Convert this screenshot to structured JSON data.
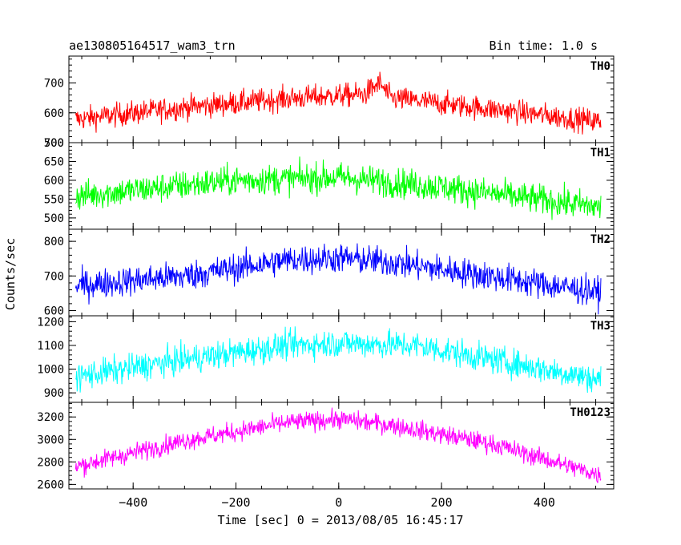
{
  "header": {
    "title": "ae130805164517_wam3_trn",
    "bin_time": "Bin time: 1.0 s"
  },
  "axes": {
    "ylabel": "Counts/sec",
    "xlabel": "Time [sec] 0 = 2013/08/05 16:45:17"
  },
  "chart_data": {
    "type": "line",
    "title": "ae130805164517_wam3_trn",
    "xlabel": "Time [sec] 0 = 2013/08/05 16:45:17",
    "ylabel": "Counts/sec",
    "xlim": [
      -525,
      535
    ],
    "x_ticks": [
      -400,
      -200,
      0,
      200,
      400
    ],
    "x_tick_labels": [
      "−400",
      "−200",
      "0",
      "200",
      "400"
    ],
    "x_range": [
      -512,
      510
    ],
    "bin_time": 1.0,
    "panels": [
      {
        "name": "TH0",
        "color": "#ff0000",
        "ylim": [
          500,
          790
        ],
        "yticks": [
          500,
          600,
          700
        ],
        "ytick_labels": [
          "500",
          "600",
          "700"
        ],
        "trend": [
          [
            -512,
            578
          ],
          [
            -300,
            618
          ],
          [
            -100,
            648
          ],
          [
            50,
            662
          ],
          [
            80,
            700
          ],
          [
            100,
            650
          ],
          [
            300,
            612
          ],
          [
            510,
            570
          ]
        ],
        "noise": 28
      },
      {
        "name": "TH1",
        "color": "#00ff00",
        "ylim": [
          470,
          700
        ],
        "yticks": [
          500,
          550,
          600,
          650,
          700
        ],
        "ytick_labels": [
          "500",
          "550",
          "600",
          "650",
          "700"
        ],
        "trend": [
          [
            -512,
            558
          ],
          [
            -200,
            600
          ],
          [
            0,
            608
          ],
          [
            200,
            582
          ],
          [
            510,
            528
          ]
        ],
        "noise": 28
      },
      {
        "name": "TH2",
        "color": "#0000ff",
        "ylim": [
          585,
          835
        ],
        "yticks": [
          600,
          700,
          800
        ],
        "ytick_labels": [
          "600",
          "700",
          "800"
        ],
        "trend": [
          [
            -512,
            672
          ],
          [
            -300,
            700
          ],
          [
            -100,
            746
          ],
          [
            0,
            752
          ],
          [
            100,
            740
          ],
          [
            300,
            698
          ],
          [
            510,
            652
          ]
        ],
        "noise": 30
      },
      {
        "name": "TH3",
        "color": "#00ffff",
        "ylim": [
          860,
          1225
        ],
        "yticks": [
          900,
          1000,
          1100,
          1200
        ],
        "ytick_labels": [
          "900",
          "1000",
          "1100",
          "1200"
        ],
        "trend": [
          [
            -512,
            968
          ],
          [
            -300,
            1040
          ],
          [
            -100,
            1100
          ],
          [
            0,
            1110
          ],
          [
            150,
            1100
          ],
          [
            300,
            1040
          ],
          [
            510,
            955
          ]
        ],
        "noise": 42
      },
      {
        "name": "TH0123",
        "color": "#ff00ff",
        "ylim": [
          2560,
          3330
        ],
        "yticks": [
          2600,
          2800,
          3000,
          3200
        ],
        "ytick_labels": [
          "2600",
          "2800",
          "3000",
          "3200"
        ],
        "trend": [
          [
            -512,
            2760
          ],
          [
            -300,
            2990
          ],
          [
            -100,
            3150
          ],
          [
            0,
            3180
          ],
          [
            100,
            3130
          ],
          [
            300,
            2960
          ],
          [
            510,
            2680
          ]
        ],
        "noise": 60
      }
    ]
  }
}
